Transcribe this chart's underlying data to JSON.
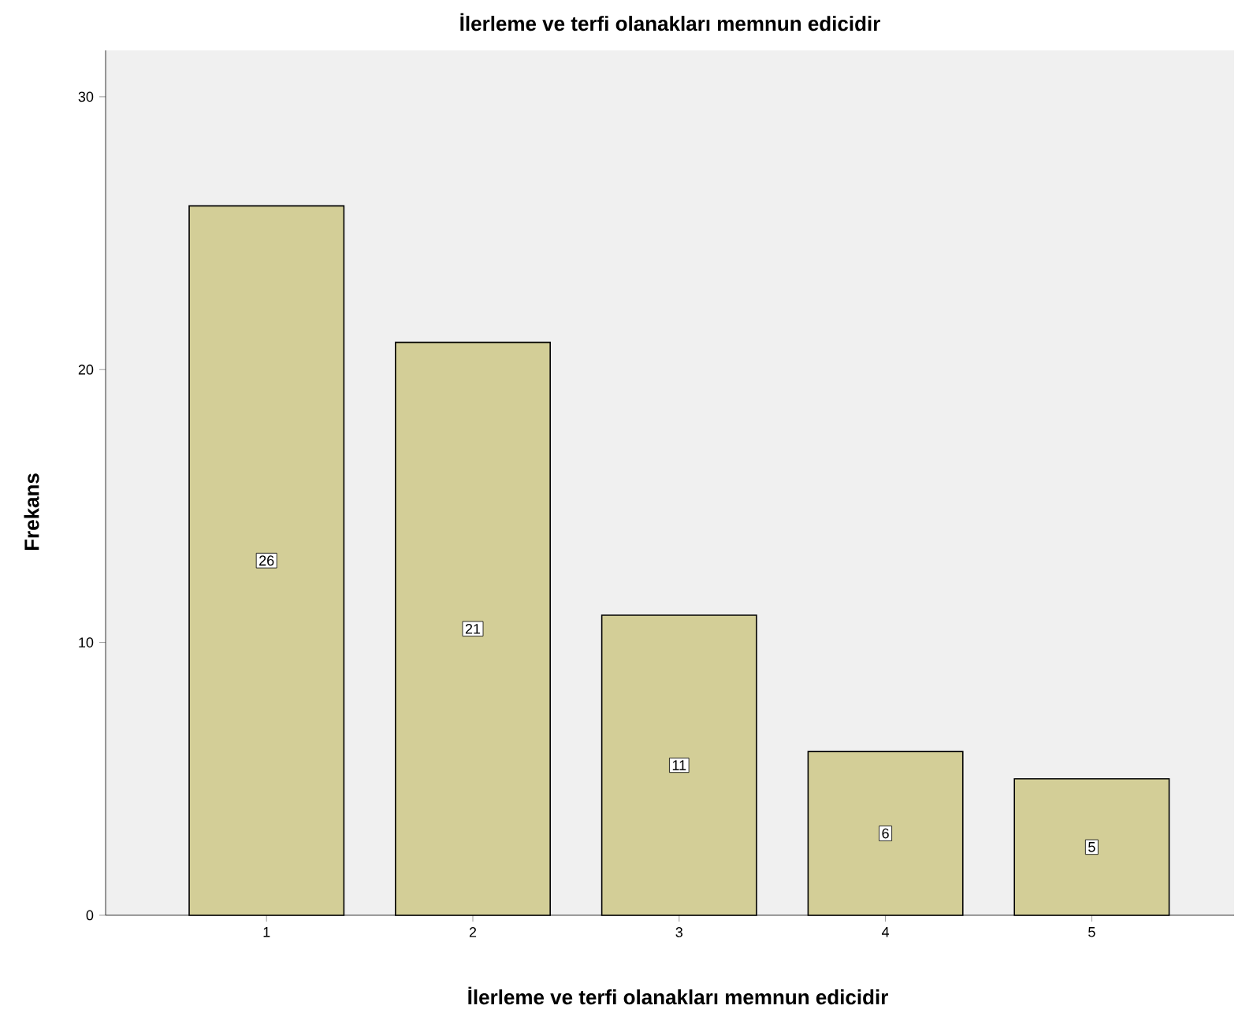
{
  "chart_data": {
    "type": "bar",
    "title": "İlerleme ve terfi olanakları memnun edicidir",
    "xlabel": "İlerleme ve terfi olanakları memnun edicidir",
    "ylabel": "Frekans",
    "categories": [
      "1",
      "2",
      "3",
      "4",
      "5"
    ],
    "values": [
      26,
      21,
      11,
      6,
      5
    ],
    "color": "#d3ce97",
    "ylim": [
      0,
      31.7
    ],
    "yticks": [
      0,
      10,
      20,
      30
    ],
    "data_labels": true,
    "grid": false
  }
}
